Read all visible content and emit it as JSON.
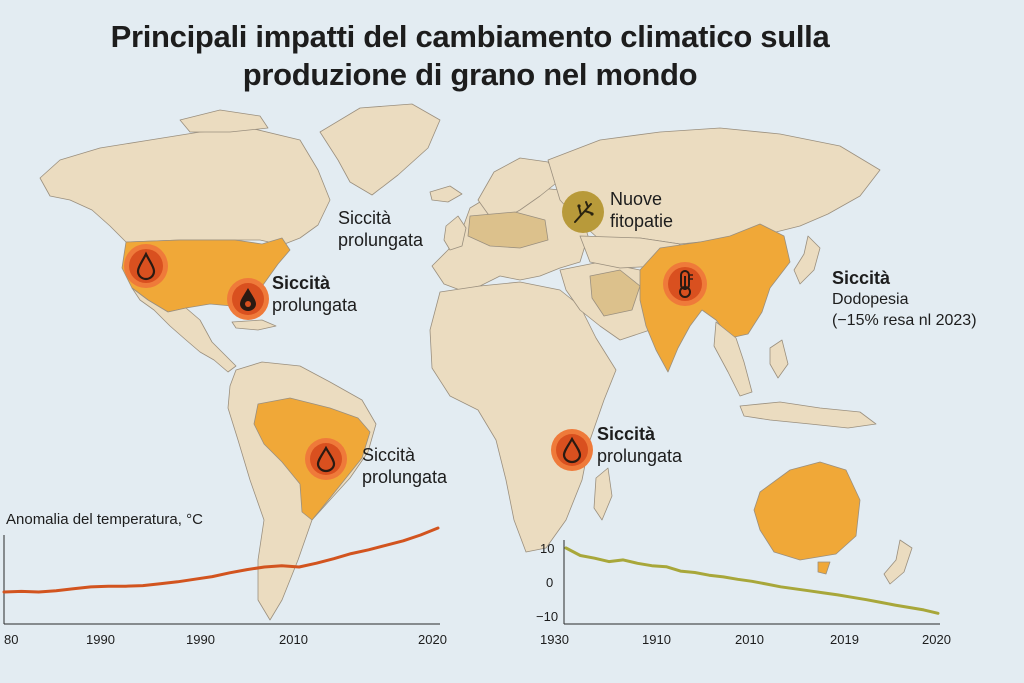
{
  "title": {
    "line1": "Principali impatti del cambiamento climatico sulla",
    "line2": "produzione di grano nel mondo"
  },
  "colors": {
    "ocean": "#e3ecf2",
    "land": "#ebdcc0",
    "impact_region": "#f0a838",
    "mild_region": "#dcc18c",
    "drought_marker": "#d9501f",
    "disease_marker": "#b89a3a",
    "temperature_line": "#d2541f",
    "yield_line": "#a8a73a"
  },
  "annotations": [
    {
      "id": "europe",
      "head": "Siccità",
      "body": "prolungata",
      "icon": "none"
    },
    {
      "id": "usa",
      "head": "Siccità",
      "body": "prolungata",
      "icon": "drop-icon"
    },
    {
      "id": "usa-west",
      "icon": "drop-icon"
    },
    {
      "id": "russia",
      "head": "Nuove",
      "body": "fitopatie",
      "icon": "plant-disease-icon"
    },
    {
      "id": "asia",
      "head": "Siccità",
      "body": "Dodopesia",
      "sub": "(−15% resa nl 2023)",
      "icon": "thermometer-icon"
    },
    {
      "id": "brazil",
      "head": "Siccità",
      "body": "prolungata",
      "icon": "drop-icon"
    },
    {
      "id": "eastafrica",
      "head": "Siccità",
      "body": "prolungata",
      "icon": "drop-icon"
    }
  ],
  "chart_data": [
    {
      "type": "line",
      "title": "Anomalia del temperatura, °C",
      "x_tick_labels": [
        "80",
        "1990",
        "1990",
        "2010",
        "2020"
      ],
      "series": [
        {
          "values": [
            0.0,
            0.01,
            0.0,
            0.02,
            0.05,
            0.08,
            0.09,
            0.09,
            0.1,
            0.13,
            0.16,
            0.2,
            0.24,
            0.3,
            0.35,
            0.39,
            0.41,
            0.39,
            0.45,
            0.52,
            0.6,
            0.66,
            0.73,
            0.8,
            0.89,
            1.0
          ]
        }
      ]
    },
    {
      "type": "line",
      "y_tick_labels": [
        "10",
        "0",
        "−10"
      ],
      "ylim": [
        -10,
        10
      ],
      "x_tick_labels": [
        "1930",
        "1910",
        "2010",
        "2019",
        "2020"
      ],
      "series": [
        {
          "values": [
            10,
            7.8,
            7,
            6,
            6.5,
            5.5,
            4.8,
            4.5,
            3.2,
            2.8,
            2.0,
            1.5,
            0.8,
            0.2,
            -0.6,
            -1.4,
            -2.0,
            -2.6,
            -3.2,
            -3.8,
            -4.5,
            -5.2,
            -6.0,
            -6.8,
            -7.5,
            -8.2,
            -9.2
          ]
        }
      ]
    }
  ]
}
